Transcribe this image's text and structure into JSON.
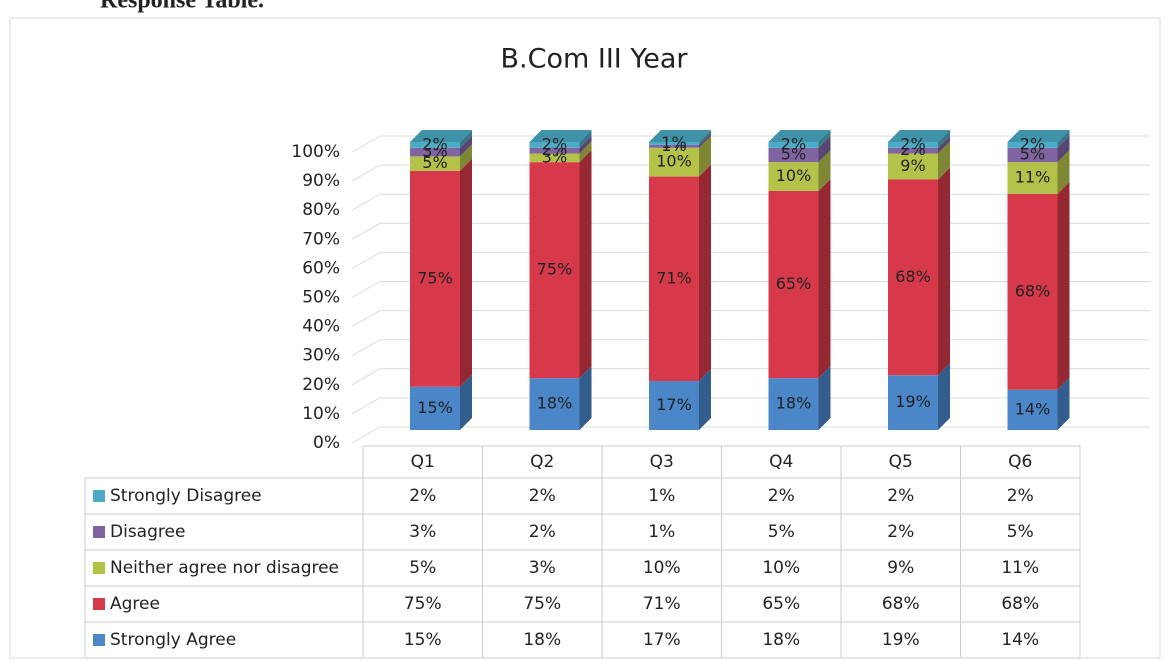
{
  "heading": "Response Table.",
  "chart_data": {
    "type": "stacked-bar-3d",
    "title": "B.Com III Year",
    "categories": [
      "Q1",
      "Q2",
      "Q3",
      "Q4",
      "Q5",
      "Q6"
    ],
    "series": [
      {
        "name": "Strongly Agree",
        "color": "#4a86c8",
        "values": [
          15,
          18,
          17,
          18,
          19,
          14
        ],
        "value_labels": [
          "15%",
          "18%",
          "17%",
          "18%",
          "19%",
          "14%"
        ]
      },
      {
        "name": "Agree",
        "color": "#d63a4a",
        "values": [
          75,
          75,
          71,
          65,
          68,
          68
        ],
        "value_labels": [
          "75%",
          "75%",
          "71%",
          "65%",
          "68%",
          "68%"
        ]
      },
      {
        "name": "Neither agree nor disagree",
        "color": "#b5c24a",
        "values": [
          5,
          3,
          10,
          10,
          9,
          11
        ],
        "value_labels": [
          "5%",
          "3%",
          "10%",
          "10%",
          "9%",
          "11%"
        ]
      },
      {
        "name": "Disagree",
        "color": "#8064a2",
        "values": [
          3,
          2,
          1,
          5,
          2,
          5
        ],
        "value_labels": [
          "3%",
          "2%",
          "1%",
          "5%",
          "2%",
          "5%"
        ]
      },
      {
        "name": "Strongly Disagree",
        "color": "#4bacc6",
        "values": [
          2,
          2,
          1,
          2,
          2,
          2
        ],
        "value_labels": [
          "2%",
          "2%",
          "1%",
          "2%",
          "2%",
          "2%"
        ]
      }
    ],
    "ylim": [
      0,
      100
    ],
    "yticks": [
      {
        "value": 0,
        "label": "0%"
      },
      {
        "value": 10,
        "label": "10%"
      },
      {
        "value": 20,
        "label": "20%"
      },
      {
        "value": 30,
        "label": "30%"
      },
      {
        "value": 40,
        "label": "40%"
      },
      {
        "value": 50,
        "label": "50%"
      },
      {
        "value": 60,
        "label": "60%"
      },
      {
        "value": 70,
        "label": "70%"
      },
      {
        "value": 80,
        "label": "80%"
      },
      {
        "value": 90,
        "label": "90%"
      },
      {
        "value": 100,
        "label": "100%"
      }
    ],
    "grid": true,
    "legend": "table"
  }
}
